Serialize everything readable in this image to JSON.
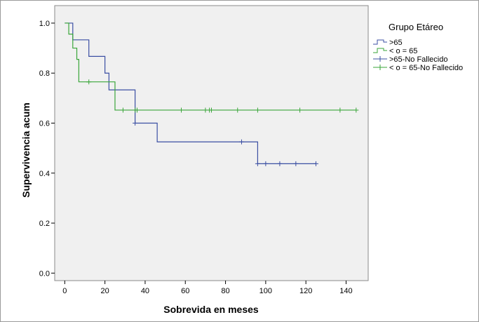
{
  "chart_data": {
    "type": "line",
    "subtype": "kaplan-meier survival curve",
    "xlabel": "Sobrevida en meses",
    "ylabel": "Supervivencia acum",
    "xlim": [
      -5,
      151
    ],
    "ylim": [
      -0.03,
      1.07
    ],
    "x_ticks": [
      0,
      20,
      40,
      60,
      80,
      100,
      120,
      140
    ],
    "y_ticks": [
      0.0,
      0.2,
      0.4,
      0.6,
      0.8,
      1.0
    ],
    "y_tick_labels": [
      "0.0",
      "0.2",
      "0.4",
      "0.6",
      "0.8",
      "1.0"
    ],
    "grid": false,
    "legend": {
      "title": "Grupo Etáreo",
      "position": "right",
      "entries": [
        ">65",
        "< o = 65",
        ">65-No Fallecido",
        "< o = 65-No Fallecido"
      ]
    },
    "series": [
      {
        "name": ">65",
        "color": "#3b4fa3",
        "steps": [
          [
            0,
            1.0
          ],
          [
            4,
            0.933
          ],
          [
            12,
            0.867
          ],
          [
            20,
            0.8
          ],
          [
            22,
            0.733
          ],
          [
            35,
            0.6
          ],
          [
            46,
            0.525
          ],
          [
            96,
            0.4375
          ],
          [
            125,
            0.4375
          ]
        ],
        "censored": [
          35,
          88,
          96,
          100,
          107,
          115,
          125
        ]
      },
      {
        "name": "< o = 65",
        "color": "#3aa63a",
        "steps": [
          [
            0,
            1.0
          ],
          [
            2,
            0.956
          ],
          [
            4,
            0.9
          ],
          [
            6,
            0.855
          ],
          [
            7,
            0.765
          ],
          [
            25,
            0.652
          ],
          [
            145,
            0.652
          ]
        ],
        "censored": [
          12,
          29,
          35,
          36,
          58,
          70,
          72,
          73,
          86,
          96,
          117,
          137,
          145
        ]
      }
    ]
  }
}
